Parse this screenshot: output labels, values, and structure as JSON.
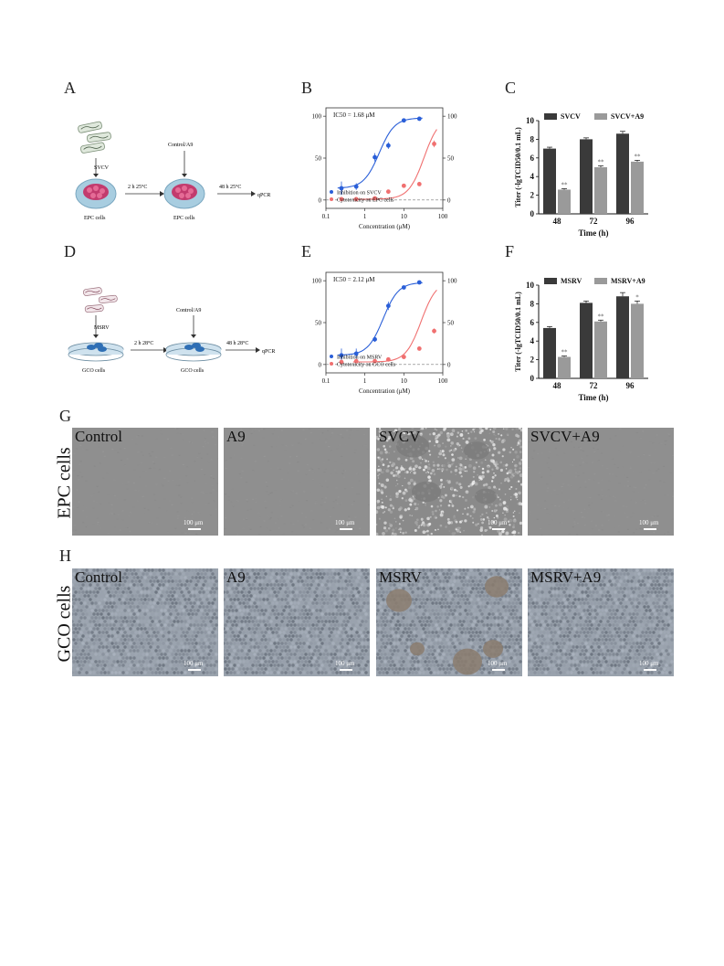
{
  "panels": {
    "A": "A",
    "B": "B",
    "C": "C",
    "D": "D",
    "E": "E",
    "F": "F",
    "G": "G",
    "H": "H"
  },
  "schematic_A": {
    "virus": "SVCV",
    "treatment": "Control/A9",
    "step1": "2 h 25°C",
    "step2": "48 h 25°C",
    "readout": "qPCR",
    "cells_left": "EPC cells",
    "cells_right": "EPC cells",
    "cell_color": "#c23b6e",
    "dish_color": "#a8cde0"
  },
  "schematic_D": {
    "virus": "MSRV",
    "treatment": "Control/A9",
    "step1": "2 h 28°C",
    "step2": "48 h 28°C",
    "readout": "qPCR",
    "cells_left": "GCO cells",
    "cells_right": "GCO cells",
    "cell_color": "#2f6fb5",
    "dish_color": "#cfe2ee"
  },
  "chart_data": [
    {
      "panel": "B",
      "type": "scatter",
      "xscale": "log",
      "xlim": [
        0.1,
        100
      ],
      "ylim": [
        -10,
        110
      ],
      "xticks": [
        "0.1",
        "1",
        "10",
        "100"
      ],
      "yticks": [
        "0",
        "50",
        "100"
      ],
      "y2ticks": [
        "0",
        "50",
        "100"
      ],
      "xlabel": "Concentration (μM)",
      "annotation": "IC50 = 1.68 μM",
      "legend_position": "bottom-left",
      "series": [
        {
          "name": "Inhibition on SVCV",
          "color": "#2a5fd8",
          "x": [
            0.25,
            0.6,
            1.8,
            4,
            10,
            25
          ],
          "y": [
            14,
            16,
            51,
            65,
            95,
            97
          ],
          "err": [
            8,
            4,
            5,
            4,
            2,
            2
          ]
        },
        {
          "name": "Cytotoxicity on EPC cells",
          "color": "#f07070",
          "x": [
            0.25,
            0.6,
            1.8,
            4,
            10,
            25,
            60
          ],
          "y": [
            1,
            1,
            2,
            10,
            17,
            19,
            67
          ],
          "err": [
            0,
            0,
            0,
            0,
            0,
            0,
            4
          ]
        }
      ]
    },
    {
      "panel": "E",
      "type": "scatter",
      "xscale": "log",
      "xlim": [
        0.1,
        100
      ],
      "ylim": [
        -10,
        110
      ],
      "xticks": [
        "0.1",
        "1",
        "10",
        "100"
      ],
      "yticks": [
        "0",
        "50",
        "100"
      ],
      "y2ticks": [
        "0",
        "50",
        "100"
      ],
      "xlabel": "Concentration (μM)",
      "annotation": "IC50 = 2.12 μM",
      "legend_position": "bottom-left",
      "series": [
        {
          "name": "Inhibition on MSRV",
          "color": "#2a5fd8",
          "x": [
            0.25,
            0.6,
            1.8,
            4,
            10,
            25
          ],
          "y": [
            11,
            13,
            30,
            70,
            92,
            98
          ],
          "err": [
            8,
            6,
            3,
            5,
            2,
            1
          ]
        },
        {
          "name": "Cytotoxicity on GCO cells",
          "color": "#f07070",
          "x": [
            0.25,
            0.6,
            1.8,
            4,
            10,
            25,
            60
          ],
          "y": [
            3,
            4,
            4,
            6,
            9,
            19,
            40
          ],
          "err": [
            0,
            0,
            0,
            0,
            0,
            0,
            3
          ]
        }
      ]
    },
    {
      "panel": "C",
      "type": "bar",
      "categories": [
        "48",
        "72",
        "96"
      ],
      "xlabel": "Time (h)",
      "ylabel": "Titer (-lgTCID50/0.1 mL)",
      "ylim": [
        0,
        10
      ],
      "yticks": [
        "0",
        "2",
        "4",
        "6",
        "8",
        "10"
      ],
      "legend_position": "top",
      "series": [
        {
          "name": "SVCV",
          "color": "#3a3a3a",
          "values": [
            7.0,
            8.0,
            8.6
          ],
          "err": [
            0.15,
            0.15,
            0.25
          ],
          "marks": [
            "",
            "",
            ""
          ]
        },
        {
          "name": "SVCV+A9",
          "color": "#9a9a9a",
          "values": [
            2.6,
            5.0,
            5.6
          ],
          "err": [
            0.1,
            0.15,
            0.15
          ],
          "marks": [
            "**",
            "**",
            "**"
          ]
        }
      ]
    },
    {
      "panel": "F",
      "type": "bar",
      "categories": [
        "48",
        "72",
        "96"
      ],
      "xlabel": "Time (h)",
      "ylabel": "Titer (-lgTCID50/0.1 mL)",
      "ylim": [
        0,
        10
      ],
      "yticks": [
        "0",
        "2",
        "4",
        "6",
        "8",
        "10"
      ],
      "legend_position": "top",
      "series": [
        {
          "name": "MSRV",
          "color": "#3a3a3a",
          "values": [
            5.4,
            8.1,
            8.8
          ],
          "err": [
            0.15,
            0.2,
            0.4
          ],
          "marks": [
            "",
            "",
            ""
          ]
        },
        {
          "name": "MSRV+A9",
          "color": "#9a9a9a",
          "values": [
            2.3,
            6.1,
            8.0
          ],
          "err": [
            0.1,
            0.15,
            0.3
          ],
          "marks": [
            "**",
            "**",
            "*"
          ]
        }
      ]
    }
  ],
  "micrographs_G": {
    "row_label": "EPC cells",
    "scale": "100 μm",
    "tiles": [
      {
        "label": "Control",
        "style": "smooth"
      },
      {
        "label": "A9",
        "style": "smooth"
      },
      {
        "label": "SVCV",
        "style": "cpe"
      },
      {
        "label": "SVCV+A9",
        "style": "smooth"
      }
    ]
  },
  "micrographs_H": {
    "row_label": "GCO cells",
    "scale": "100 μm",
    "tiles": [
      {
        "label": "Control",
        "style": "cobble"
      },
      {
        "label": "A9",
        "style": "cobble"
      },
      {
        "label": "MSRV",
        "style": "plaque"
      },
      {
        "label": "MSRV+A9",
        "style": "cobble"
      }
    ]
  }
}
